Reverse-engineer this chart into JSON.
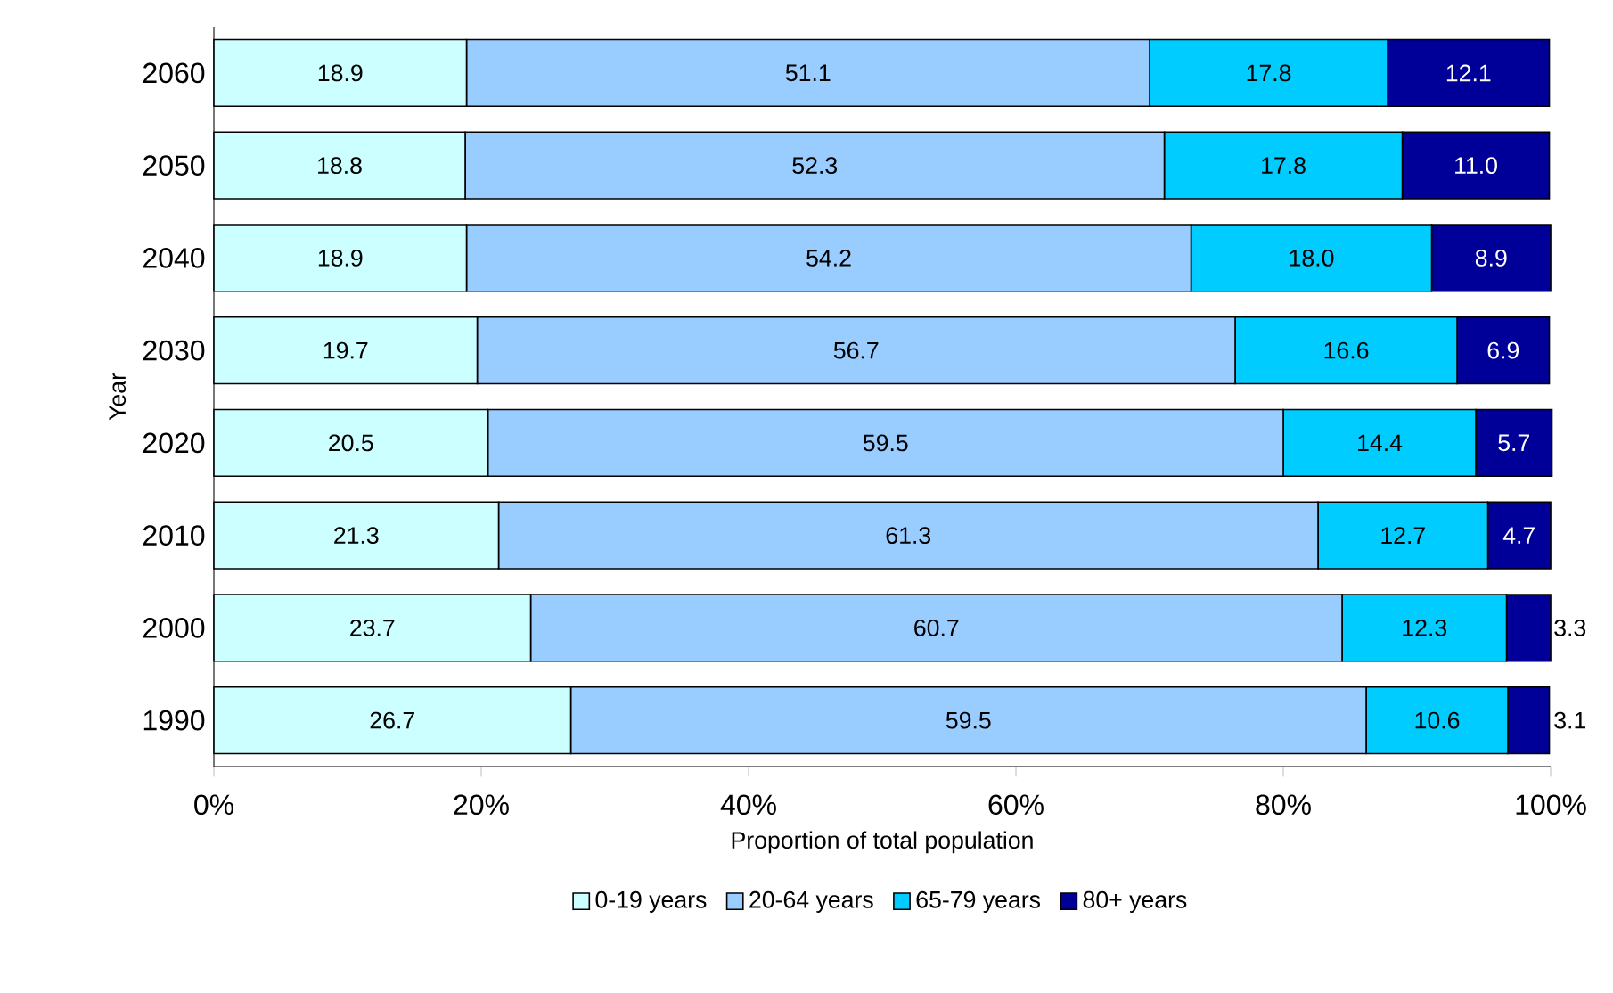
{
  "chart_data": {
    "type": "bar",
    "orientation": "horizontal",
    "stacked": true,
    "xlabel": "Proportion of total population",
    "ylabel": "Year",
    "categories": [
      "2060",
      "2050",
      "2040",
      "2030",
      "2020",
      "2010",
      "2000",
      "1990"
    ],
    "series": [
      {
        "name": "0-19 years",
        "color": "#ccffff",
        "values": [
          18.9,
          18.8,
          18.9,
          19.7,
          20.5,
          21.3,
          23.7,
          26.7
        ],
        "value_labels": [
          "18.9",
          "18.8",
          "18.9",
          "19.7",
          "20.5",
          "21.3",
          "23.7",
          "26.7"
        ]
      },
      {
        "name": "20-64 years",
        "color": "#99ccff",
        "values": [
          51.1,
          52.3,
          54.2,
          56.7,
          59.5,
          61.3,
          60.7,
          59.5
        ],
        "value_labels": [
          "51.1",
          "52.3",
          "54.2",
          "56.7",
          "59.5",
          "61.3",
          "60.7",
          "59.5"
        ]
      },
      {
        "name": "65-79 years",
        "color": "#00ccff",
        "values": [
          17.8,
          17.8,
          18.0,
          16.6,
          14.4,
          12.7,
          12.3,
          10.6
        ],
        "value_labels": [
          "17.8",
          "17.8",
          "18.0",
          "16.6",
          "14.4",
          "12.7",
          "12.3",
          "10.6"
        ]
      },
      {
        "name": "80+ years",
        "color": "#000099",
        "values": [
          12.1,
          11.0,
          8.9,
          6.9,
          5.7,
          4.7,
          3.3,
          3.1
        ],
        "value_labels": [
          "12.1",
          "11.0",
          "8.9",
          "6.9",
          "5.7",
          "4.7",
          "3.3",
          "3.1"
        ]
      }
    ],
    "xlim": [
      0,
      100
    ],
    "xticks": [
      {
        "value": 0,
        "label": "0%"
      },
      {
        "value": 20,
        "label": "20%"
      },
      {
        "value": 40,
        "label": "40%"
      },
      {
        "value": 60,
        "label": "60%"
      },
      {
        "value": 80,
        "label": "80%"
      },
      {
        "value": 100,
        "label": "100%"
      }
    ],
    "legend": "bottom"
  }
}
